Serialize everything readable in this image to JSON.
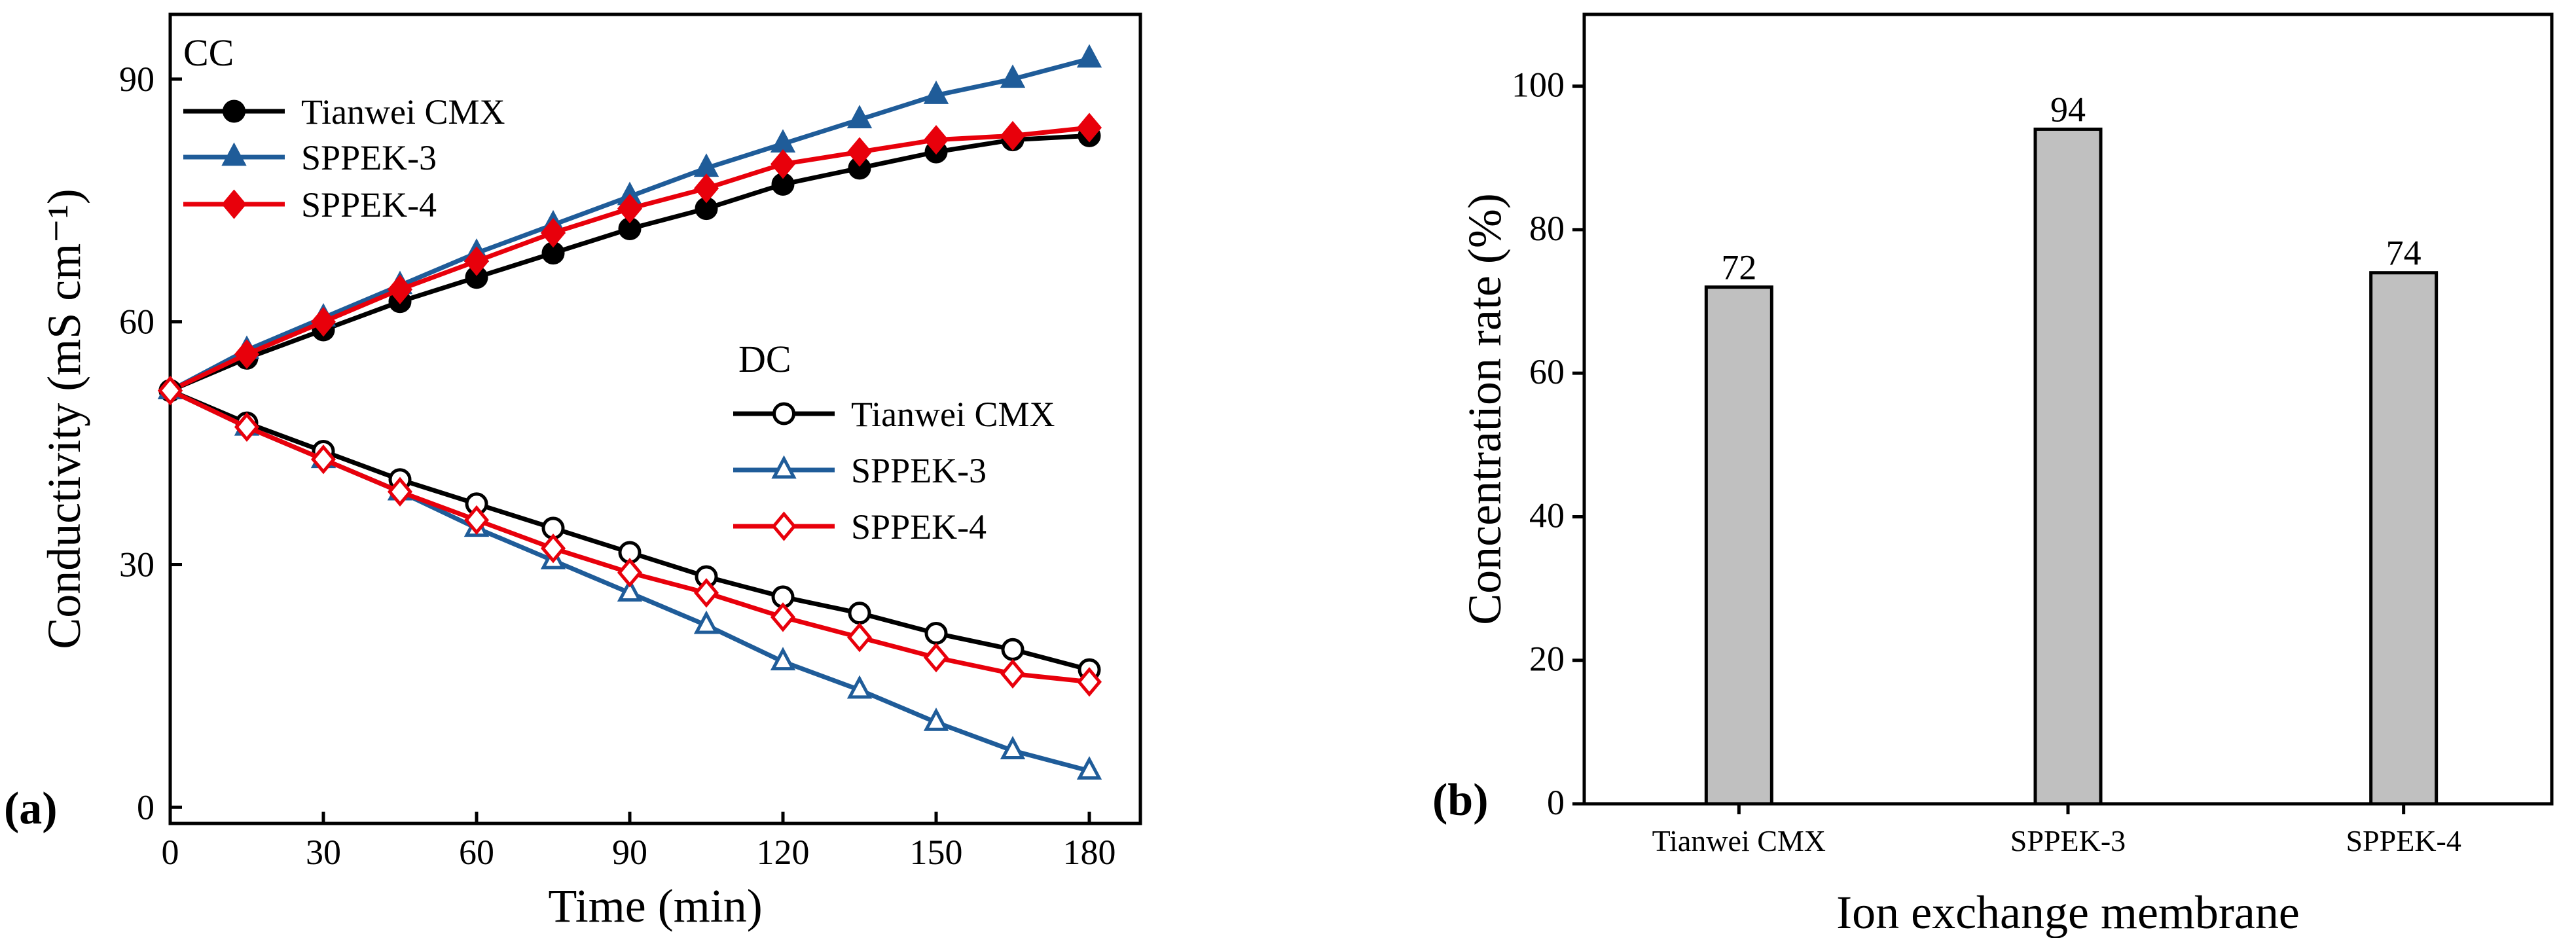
{
  "chart_data": [
    {
      "type": "line",
      "panel_label": "(a)",
      "xlabel": "Time (min)",
      "ylabel": "Conductivity (mS cm⁻¹)",
      "xlim": [
        0,
        190
      ],
      "ylim": [
        -2,
        98
      ],
      "xticks": [
        0,
        30,
        60,
        90,
        120,
        150,
        180
      ],
      "yticks": [
        0,
        30,
        60,
        90
      ],
      "x": [
        0,
        15,
        30,
        45,
        60,
        75,
        90,
        105,
        120,
        135,
        150,
        165,
        180
      ],
      "groups": [
        {
          "name": "CC",
          "marker_fill": "filled",
          "series": [
            {
              "name": "Tianwei CMX",
              "color": "#000000",
              "marker": "circle",
              "values": [
                51.5,
                55.5,
                59,
                62.5,
                65.5,
                68.5,
                71.5,
                74,
                77,
                79,
                81,
                82.5,
                83
              ]
            },
            {
              "name": "SPPEK-3",
              "color": "#1F5C99",
              "marker": "triangle",
              "values": [
                51.5,
                56.5,
                60.5,
                64.5,
                68.5,
                72,
                75.5,
                79,
                82,
                85,
                88,
                90,
                92.5
              ]
            },
            {
              "name": "SPPEK-4",
              "color": "#E8000B",
              "marker": "diamond",
              "values": [
                51.5,
                56,
                60,
                64,
                67.5,
                71,
                74,
                76.5,
                79.5,
                81,
                82.5,
                83,
                84
              ]
            }
          ]
        },
        {
          "name": "DC",
          "marker_fill": "open",
          "series": [
            {
              "name": "Tianwei CMX",
              "color": "#000000",
              "marker": "circle",
              "values": [
                51.5,
                47.5,
                44,
                40.5,
                37.5,
                34.5,
                31.5,
                28.5,
                26,
                24,
                21.5,
                19.5,
                17
              ]
            },
            {
              "name": "SPPEK-3",
              "color": "#1F5C99",
              "marker": "triangle",
              "values": [
                51.5,
                47,
                43,
                39,
                34.5,
                30.5,
                26.5,
                22.5,
                18,
                14.5,
                10.5,
                7,
                4.5
              ]
            },
            {
              "name": "SPPEK-4",
              "color": "#E8000B",
              "marker": "diamond",
              "values": [
                51.5,
                47,
                43,
                39,
                35.5,
                32,
                29,
                26.5,
                23.5,
                21,
                18.5,
                16.5,
                15.5
              ]
            }
          ]
        }
      ]
    },
    {
      "type": "bar",
      "panel_label": "(b)",
      "xlabel": "Ion exchange membrane",
      "ylabel": "Concentration rate (%)",
      "ylim": [
        0,
        110
      ],
      "yticks": [
        0,
        20,
        40,
        60,
        80,
        100
      ],
      "categories": [
        "Tianwei CMX",
        "SPPEK-3",
        "SPPEK-4"
      ],
      "values": [
        72,
        94,
        74
      ],
      "bar_color": "#C0C0C0"
    }
  ]
}
